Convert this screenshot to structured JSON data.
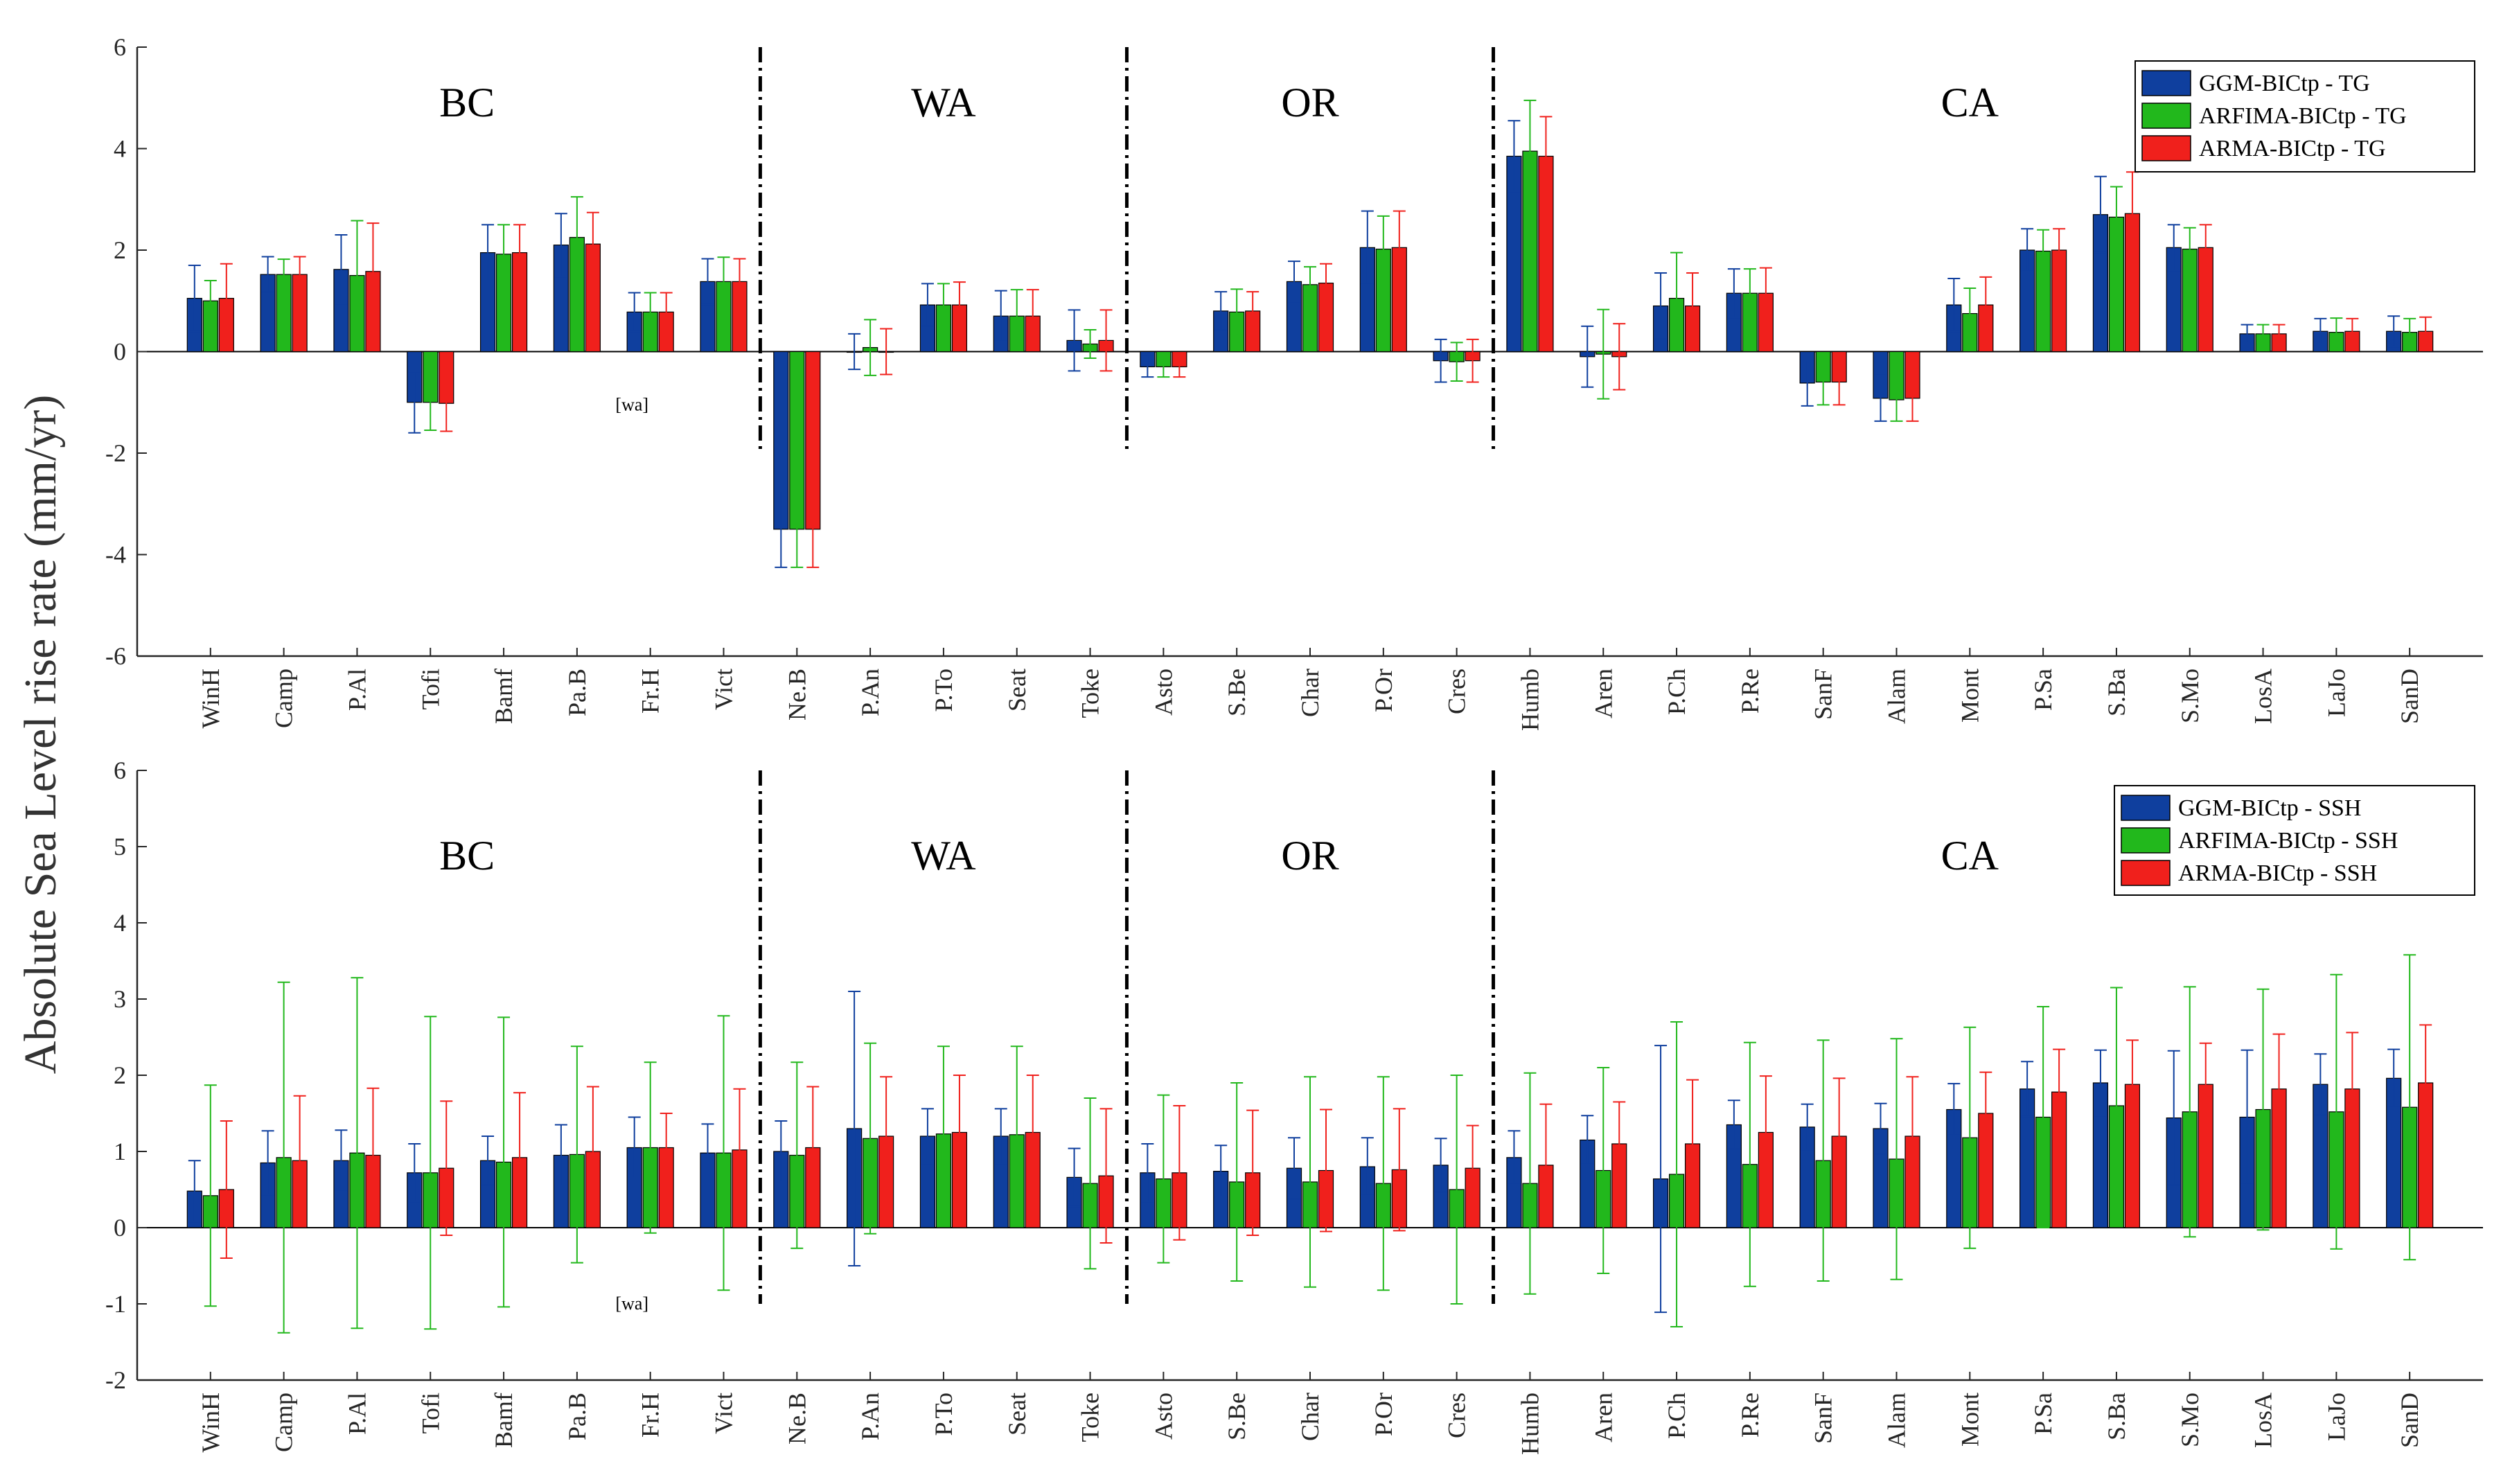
{
  "colors": {
    "ggm": "#0f3f9e",
    "arfima": "#22b81c",
    "arma": "#f0201c",
    "axis": "#262626",
    "divider": "#000000"
  },
  "ylabel": "Absolute Sea Level rise rate  (mm/yr)",
  "chart_data": [
    {
      "type": "bar",
      "title": "",
      "xlabel": "",
      "ylabel": "Absolute Sea Level rise rate  (mm/yr)",
      "ylim": [
        -6,
        6
      ],
      "yticks": [
        -6,
        -4,
        -2,
        0,
        2,
        4,
        6
      ],
      "categories": [
        "WinH",
        "Camp",
        "P.Al",
        "Tofi",
        "Bamf",
        "Pa.B",
        "Fr.H",
        "Vict",
        "Ne.B",
        "P.An",
        "P.To",
        "Seat",
        "Toke",
        "Asto",
        "S.Be",
        "Char",
        "P.Or",
        "Cres",
        "Humb",
        "Aren",
        "P.Ch",
        "P.Re",
        "SanF",
        "Alam",
        "Mont",
        "P.Sa",
        "S.Ba",
        "S.Mo",
        "LosA",
        "LaJo",
        "SanD"
      ],
      "regions": [
        {
          "label": "BC",
          "from": 0,
          "to": 7
        },
        {
          "label": "WA",
          "from": 8,
          "to": 12
        },
        {
          "label": "OR",
          "from": 13,
          "to": 17
        },
        {
          "label": "CA",
          "from": 18,
          "to": 30
        }
      ],
      "dividers_after": [
        7,
        12,
        17
      ],
      "divider_range": [
        -2,
        6
      ],
      "annotation": {
        "text": "[wa]",
        "x": 5.75,
        "y": -1.05
      },
      "legend": {
        "position": "top-right",
        "entries": [
          "GGM-BICtp - TG",
          "ARFIMA-BICtp - TG",
          "ARMA-BICtp - TG"
        ]
      },
      "series": [
        {
          "name": "GGM-BICtp - TG",
          "values": [
            1.05,
            1.52,
            1.62,
            -1.0,
            1.95,
            2.1,
            0.78,
            1.38,
            -3.5,
            0.0,
            0.92,
            0.7,
            0.22,
            -0.3,
            0.8,
            1.38,
            2.05,
            -0.18,
            3.85,
            -0.1,
            0.9,
            1.15,
            -0.62,
            -0.92,
            0.92,
            2.0,
            2.7,
            2.05,
            0.35,
            0.4,
            0.4
          ],
          "errors": [
            0.65,
            0.35,
            0.68,
            0.6,
            0.55,
            0.62,
            0.38,
            0.45,
            0.75,
            0.35,
            0.42,
            0.5,
            0.6,
            0.2,
            0.38,
            0.4,
            0.72,
            0.42,
            0.7,
            0.6,
            0.65,
            0.48,
            0.45,
            0.45,
            0.52,
            0.42,
            0.75,
            0.45,
            0.18,
            0.25,
            0.3
          ]
        },
        {
          "name": "ARFIMA-BICtp - TG",
          "values": [
            1.0,
            1.52,
            1.5,
            -1.0,
            1.92,
            2.25,
            0.78,
            1.38,
            -3.5,
            0.08,
            0.92,
            0.7,
            0.15,
            -0.3,
            0.78,
            1.32,
            2.02,
            -0.2,
            3.95,
            -0.05,
            1.05,
            1.15,
            -0.6,
            -0.95,
            0.75,
            1.98,
            2.65,
            2.02,
            0.35,
            0.38,
            0.38
          ],
          "errors": [
            0.4,
            0.3,
            1.08,
            0.55,
            0.58,
            0.8,
            0.38,
            0.48,
            0.75,
            0.55,
            0.42,
            0.52,
            0.28,
            0.2,
            0.45,
            0.35,
            0.65,
            0.38,
            1.0,
            0.88,
            0.9,
            0.48,
            0.45,
            0.42,
            0.5,
            0.42,
            0.6,
            0.42,
            0.18,
            0.28,
            0.27
          ]
        },
        {
          "name": "ARMA-BICtp - TG",
          "values": [
            1.05,
            1.52,
            1.58,
            -1.02,
            1.95,
            2.12,
            0.78,
            1.38,
            -3.5,
            0.0,
            0.92,
            0.7,
            0.22,
            -0.3,
            0.8,
            1.35,
            2.05,
            -0.18,
            3.85,
            -0.1,
            0.9,
            1.15,
            -0.6,
            -0.92,
            0.92,
            2.0,
            2.72,
            2.05,
            0.35,
            0.4,
            0.4
          ],
          "errors": [
            0.68,
            0.35,
            0.95,
            0.55,
            0.55,
            0.62,
            0.38,
            0.45,
            0.75,
            0.45,
            0.45,
            0.52,
            0.6,
            0.2,
            0.38,
            0.38,
            0.72,
            0.42,
            0.78,
            0.65,
            0.65,
            0.5,
            0.45,
            0.45,
            0.55,
            0.42,
            0.82,
            0.45,
            0.18,
            0.25,
            0.28
          ]
        }
      ]
    },
    {
      "type": "bar",
      "title": "",
      "xlabel": "",
      "ylabel": "Absolute Sea Level rise rate  (mm/yr)",
      "ylim": [
        -2,
        6
      ],
      "yticks": [
        -2,
        -1,
        0,
        1,
        2,
        3,
        4,
        5,
        6
      ],
      "categories": [
        "WinH",
        "Camp",
        "P.Al",
        "Tofi",
        "Bamf",
        "Pa.B",
        "Fr.H",
        "Vict",
        "Ne.B",
        "P.An",
        "P.To",
        "Seat",
        "Toke",
        "Asto",
        "S.Be",
        "Char",
        "P.Or",
        "Cres",
        "Humb",
        "Aren",
        "P.Ch",
        "P.Re",
        "SanF",
        "Alam",
        "Mont",
        "P.Sa",
        "S.Ba",
        "S.Mo",
        "LosA",
        "LaJo",
        "SanD"
      ],
      "regions": [
        {
          "label": "BC",
          "from": 0,
          "to": 7
        },
        {
          "label": "WA",
          "from": 8,
          "to": 12
        },
        {
          "label": "OR",
          "from": 13,
          "to": 17
        },
        {
          "label": "CA",
          "from": 18,
          "to": 30
        }
      ],
      "dividers_after": [
        7,
        12,
        17
      ],
      "divider_range": [
        -1,
        6
      ],
      "annotation": {
        "text": "[wa]",
        "x": 5.75,
        "y": -1.0
      },
      "legend": {
        "position": "top-right",
        "entries": [
          "GGM-BICtp - SSH",
          "ARFIMA-BICtp - SSH",
          "ARMA-BICtp - SSH"
        ]
      },
      "series": [
        {
          "name": "GGM-BICtp - SSH",
          "values": [
            0.48,
            0.85,
            0.88,
            0.72,
            0.88,
            0.95,
            1.05,
            0.98,
            1.0,
            1.3,
            1.2,
            1.2,
            0.66,
            0.72,
            0.74,
            0.78,
            0.8,
            0.82,
            0.92,
            1.15,
            0.64,
            1.35,
            1.32,
            1.3,
            1.55,
            1.82,
            1.9,
            1.44,
            1.45,
            1.88,
            1.96
          ],
          "errors": [
            0.4,
            0.42,
            0.4,
            0.38,
            0.32,
            0.4,
            0.4,
            0.38,
            0.4,
            1.8,
            0.36,
            0.36,
            0.38,
            0.38,
            0.34,
            0.4,
            0.38,
            0.35,
            0.35,
            0.32,
            1.75,
            0.32,
            0.3,
            0.33,
            0.34,
            0.36,
            0.43,
            0.88,
            0.88,
            0.4,
            0.38
          ]
        },
        {
          "name": "ARFIMA-BICtp - SSH",
          "values": [
            0.42,
            0.92,
            0.98,
            0.72,
            0.86,
            0.96,
            1.05,
            0.98,
            0.95,
            1.17,
            1.23,
            1.22,
            0.58,
            0.64,
            0.6,
            0.6,
            0.58,
            0.5,
            0.58,
            0.75,
            0.7,
            0.83,
            0.88,
            0.9,
            1.18,
            1.45,
            1.6,
            1.52,
            1.55,
            1.52,
            1.58
          ],
          "errors": [
            1.45,
            2.3,
            2.3,
            2.05,
            1.9,
            1.42,
            1.12,
            1.8,
            1.22,
            1.25,
            1.15,
            1.16,
            1.12,
            1.1,
            1.3,
            1.38,
            1.4,
            1.5,
            1.45,
            1.35,
            2.0,
            1.6,
            1.58,
            1.58,
            1.45,
            1.45,
            1.55,
            1.64,
            1.58,
            1.8,
            2.0
          ]
        },
        {
          "name": "ARMA-BICtp - SSH",
          "values": [
            0.5,
            0.88,
            0.95,
            0.78,
            0.92,
            1.0,
            1.05,
            1.02,
            1.05,
            1.2,
            1.25,
            1.25,
            0.68,
            0.72,
            0.72,
            0.75,
            0.76,
            0.78,
            0.82,
            1.1,
            1.1,
            1.25,
            1.2,
            1.2,
            1.5,
            1.78,
            1.88,
            1.88,
            1.82,
            1.82,
            1.9
          ],
          "errors": [
            0.9,
            0.85,
            0.88,
            0.88,
            0.85,
            0.85,
            0.45,
            0.8,
            0.8,
            0.78,
            0.75,
            0.75,
            0.88,
            0.88,
            0.82,
            0.8,
            0.8,
            0.56,
            0.8,
            0.55,
            0.84,
            0.74,
            0.76,
            0.78,
            0.54,
            0.56,
            0.58,
            0.54,
            0.72,
            0.74,
            0.76
          ]
        }
      ]
    }
  ]
}
